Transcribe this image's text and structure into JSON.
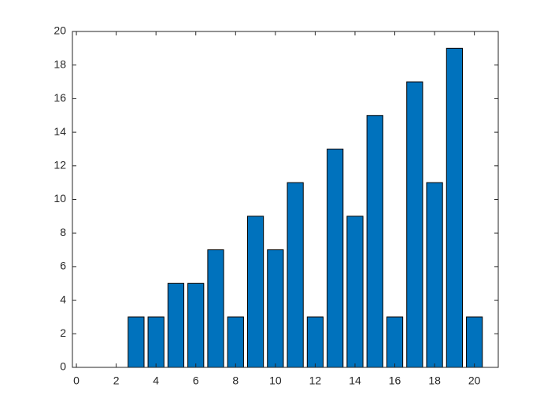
{
  "chart_data": {
    "type": "bar",
    "x": [
      1,
      2,
      3,
      4,
      5,
      6,
      7,
      8,
      9,
      10,
      11,
      12,
      13,
      14,
      15,
      16,
      17,
      18,
      19,
      20
    ],
    "values": [
      0,
      0,
      3,
      3,
      5,
      5,
      7,
      3,
      9,
      7,
      11,
      3,
      13,
      9,
      15,
      3,
      17,
      11,
      19,
      3
    ],
    "color": "#0072bd",
    "xlim": [
      -0.2,
      21.2
    ],
    "xticks": [
      0,
      2,
      4,
      6,
      8,
      10,
      12,
      14,
      16,
      18,
      20
    ],
    "ylim": [
      0,
      20
    ],
    "yticks": [
      0,
      2,
      4,
      6,
      8,
      10,
      12,
      14,
      16,
      18,
      20
    ]
  }
}
